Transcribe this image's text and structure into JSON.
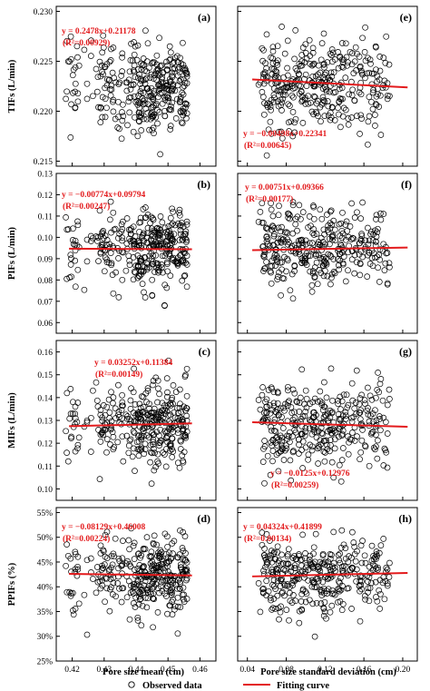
{
  "figure": {
    "legend": {
      "observed_label": "Observed data",
      "fitting_label": "Fitting curve"
    },
    "colors": {
      "points": "#000000",
      "fit": "#e31a1c",
      "eq_text": "#e31a1c"
    },
    "xaxis_left": {
      "label": "Pore size mean (cm)",
      "range": [
        0.415,
        0.465
      ],
      "ticks": [
        "0.42",
        "0.43",
        "0.44",
        "0.45",
        "0.46"
      ]
    },
    "xaxis_right": {
      "label": "Pore size standard deviation (cm)",
      "range": [
        0.03,
        0.215
      ],
      "ticks": [
        "0.04",
        "0.08",
        "0.12",
        "0.16",
        "0.20"
      ]
    }
  },
  "chart_data": [
    {
      "type": "scatter",
      "panel": "(a)",
      "ylabel": "TIFs (L/min)",
      "ylim": [
        0.2145,
        0.2305
      ],
      "yticks": [
        "0.215",
        "0.220",
        "0.225",
        "0.230"
      ],
      "x_source": "mean",
      "center": 0.2226,
      "spread": 0.0024,
      "fit": {
        "slope": 0.2478,
        "intercept": 0.21178
      },
      "equation": "y = 0.2478x+0.21178",
      "r2": "(R²=0.00929)"
    },
    {
      "type": "scatter",
      "panel": "(b)",
      "ylabel": "PIFs (L/min)",
      "ylim": [
        0.055,
        0.13
      ],
      "yticks": [
        "0.06",
        "0.07",
        "0.08",
        "0.09",
        "0.10",
        "0.11",
        "0.12",
        "0.13"
      ],
      "x_source": "mean",
      "center": 0.0945,
      "spread": 0.0095,
      "fit": {
        "slope": -0.00774,
        "intercept": 0.09794
      },
      "equation": "y = −0.00774x+0.09794",
      "r2": "(R²=0.00247)"
    },
    {
      "type": "scatter",
      "panel": "(c)",
      "ylabel": "MIFs (L/min)",
      "ylim": [
        0.095,
        0.165
      ],
      "yticks": [
        "0.10",
        "0.11",
        "0.12",
        "0.13",
        "0.14",
        "0.15",
        "0.16"
      ],
      "x_source": "mean",
      "center": 0.1285,
      "spread": 0.0095,
      "fit": {
        "slope": 0.03252,
        "intercept": 0.11384
      },
      "equation": "y = 0.03252x+0.11384",
      "r2": "(R²=0.00149)"
    },
    {
      "type": "scatter",
      "panel": "(d)",
      "ylabel": "PPIFs (%)",
      "ylim": [
        25,
        56
      ],
      "yticks": [
        "25%",
        "30%",
        "35%",
        "40%",
        "45%",
        "50%",
        "55%"
      ],
      "ytick_values": [
        25,
        30,
        35,
        40,
        45,
        50,
        55
      ],
      "x_source": "mean",
      "center": 42.3,
      "spread": 4.2,
      "fit": {
        "slope": -0.08129,
        "intercept": 0.46008,
        "scale": 100
      },
      "equation": "y = −0.08129x+0.46008",
      "r2": "(R²=0.00224)"
    },
    {
      "type": "scatter",
      "panel": "(e)",
      "ylabel": "",
      "ylim": [
        0.2145,
        0.2305
      ],
      "yticks": [],
      "x_source": "sd",
      "center": 0.2226,
      "spread": 0.0024,
      "fit": {
        "slope": -0.00498,
        "intercept": 0.22341
      },
      "equation": "y = −0.00498x+0.22341",
      "r2": "(R²=0.00645)"
    },
    {
      "type": "scatter",
      "panel": "(f)",
      "ylabel": "",
      "ylim": [
        0.055,
        0.13
      ],
      "yticks": [],
      "x_source": "sd",
      "center": 0.0955,
      "spread": 0.0095,
      "fit": {
        "slope": 0.00751,
        "intercept": 0.09366
      },
      "equation": "y = 0.00751x+0.09366",
      "r2": "(R²=0.00177)"
    },
    {
      "type": "scatter",
      "panel": "(g)",
      "ylabel": "",
      "ylim": [
        0.095,
        0.165
      ],
      "yticks": [],
      "x_source": "sd",
      "center": 0.1285,
      "spread": 0.0095,
      "fit": {
        "slope": -0.0125,
        "intercept": 0.12976
      },
      "equation": "y = −0.0125x+0.12976",
      "r2": "(R²=0.00259)"
    },
    {
      "type": "scatter",
      "panel": "(h)",
      "ylabel": "",
      "ylim": [
        25,
        56
      ],
      "yticks": [],
      "x_source": "sd",
      "center": 42.3,
      "spread": 4.2,
      "fit": {
        "slope": 0.04324,
        "intercept": 0.41899,
        "scale": 100
      },
      "equation": "y = 0.04324x+0.41899",
      "r2": "(R²=0.00134)"
    }
  ]
}
